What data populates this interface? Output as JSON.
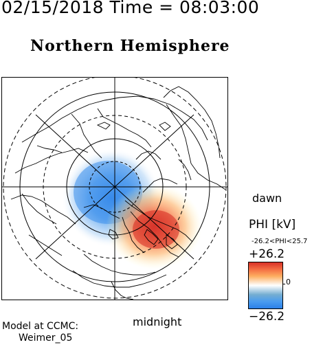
{
  "header": {
    "timestamp": "02/15/2018 Time = 08:03:00",
    "title": "Northern Hemisphere"
  },
  "map": {
    "projection": "polar",
    "hemisphere": "north",
    "dawn_label": "dawn",
    "midnight_label": "midnight",
    "colors": {
      "positive": "#d73027",
      "negative": "#2b80e8",
      "neutral": "#ffffff",
      "lines": "#000000"
    }
  },
  "colorbar": {
    "title": "PHI [kV]",
    "range_text": "-26.2<PHI<25.7",
    "max_label": "+26.2",
    "min_label": "−26.2",
    "zero_label": "0",
    "max_value": 26.2,
    "min_value": -26.2
  },
  "footer": {
    "model_line1": "Model at CCMC:",
    "model_line2": "Weimer_05"
  }
}
